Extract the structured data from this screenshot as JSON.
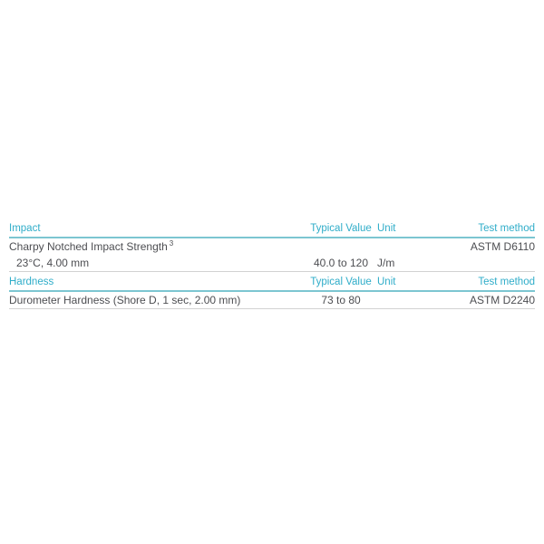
{
  "colors": {
    "accent_text": "#2fadc9",
    "accent_rule": "#7cc6d1",
    "divider_rule": "#d2d2d2",
    "body_text": "#4d4e52",
    "background": "#ffffff"
  },
  "tables": [
    {
      "section": "Impact",
      "headers": {
        "typical_value": "Typical Value",
        "unit": "Unit",
        "test_method": "Test method"
      },
      "rows": [
        {
          "property": "Charpy Notched Impact Strength",
          "superscript": "3",
          "typical_value": "",
          "unit": "",
          "test_method": "ASTM D6110"
        },
        {
          "property": "23°C, 4.00 mm",
          "typical_value": "40.0 to 120",
          "unit": "J/m",
          "test_method": ""
        }
      ]
    },
    {
      "section": "Hardness",
      "headers": {
        "typical_value": "Typical Value",
        "unit": "Unit",
        "test_method": "Test method"
      },
      "rows": [
        {
          "property": "Durometer Hardness (Shore D, 1 sec, 2.00 mm)",
          "typical_value": "73 to 80",
          "unit": "",
          "test_method": "ASTM D2240"
        }
      ]
    }
  ]
}
